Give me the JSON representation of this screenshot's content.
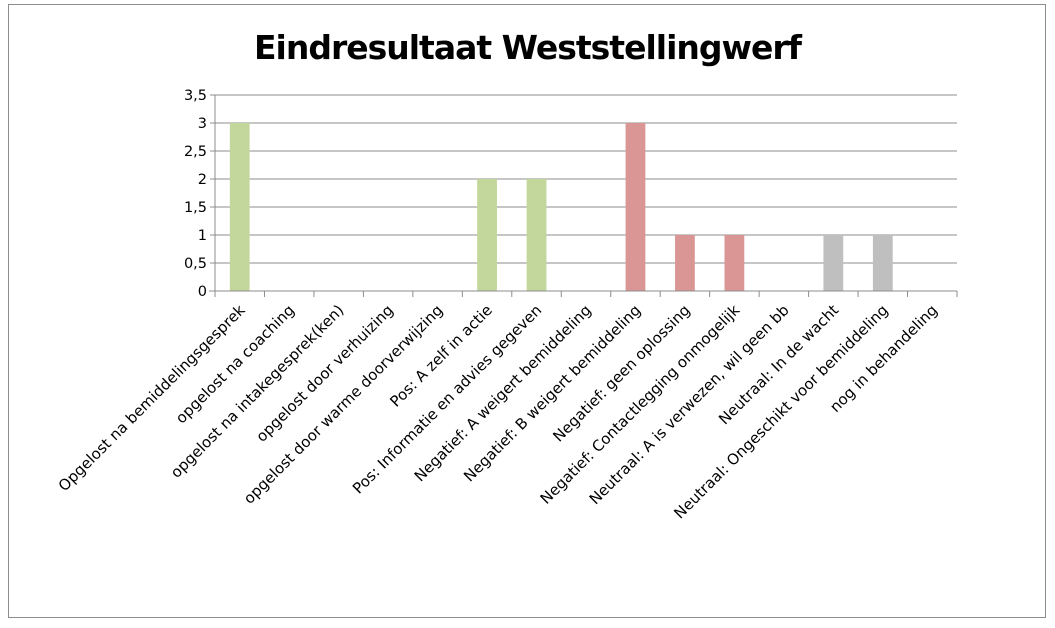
{
  "chart_data": {
    "type": "bar",
    "title": "Eindresultaat Weststellingwerf",
    "xlabel": "",
    "ylabel": "",
    "ylim": [
      0,
      3.5
    ],
    "yticks": [
      "0",
      "0,5",
      "1",
      "1,5",
      "2",
      "2,5",
      "3",
      "3,5"
    ],
    "grid": true,
    "legend": "none",
    "categories": [
      "Opgelost na bemiddelingsgesprek",
      "opgelost na coaching",
      "opgelost na intakegesprek(ken)",
      "opgelost door verhuizing",
      "opgelost door warme doorverwijzing",
      "Pos: A zelf in actie",
      "Pos: Informatie en advies gegeven",
      "Negatief: A weigert bemiddeling",
      "Negatief: B weigert bemiddeling",
      "Negatief: geen oplossing",
      "Negatief: Contactlegging onmogelijk",
      "Neutraal: A is verwezen, wil geen bb",
      "Neutraal: In de wacht",
      "Neutraal: Ongeschikt voor bemiddeling",
      "nog in behandeling"
    ],
    "values": [
      3,
      0,
      0,
      0,
      0,
      2,
      2,
      0,
      3,
      1,
      1,
      0,
      1,
      1,
      0
    ],
    "bar_colors": [
      "#c3d69b",
      "#c3d69b",
      "#c3d69b",
      "#c3d69b",
      "#c3d69b",
      "#c3d69b",
      "#c3d69b",
      "#d99694",
      "#d99694",
      "#d99694",
      "#d99694",
      "#bfbfbf",
      "#bfbfbf",
      "#bfbfbf",
      "#bfbfbf"
    ],
    "gridline_color": "#8c8c8c"
  }
}
